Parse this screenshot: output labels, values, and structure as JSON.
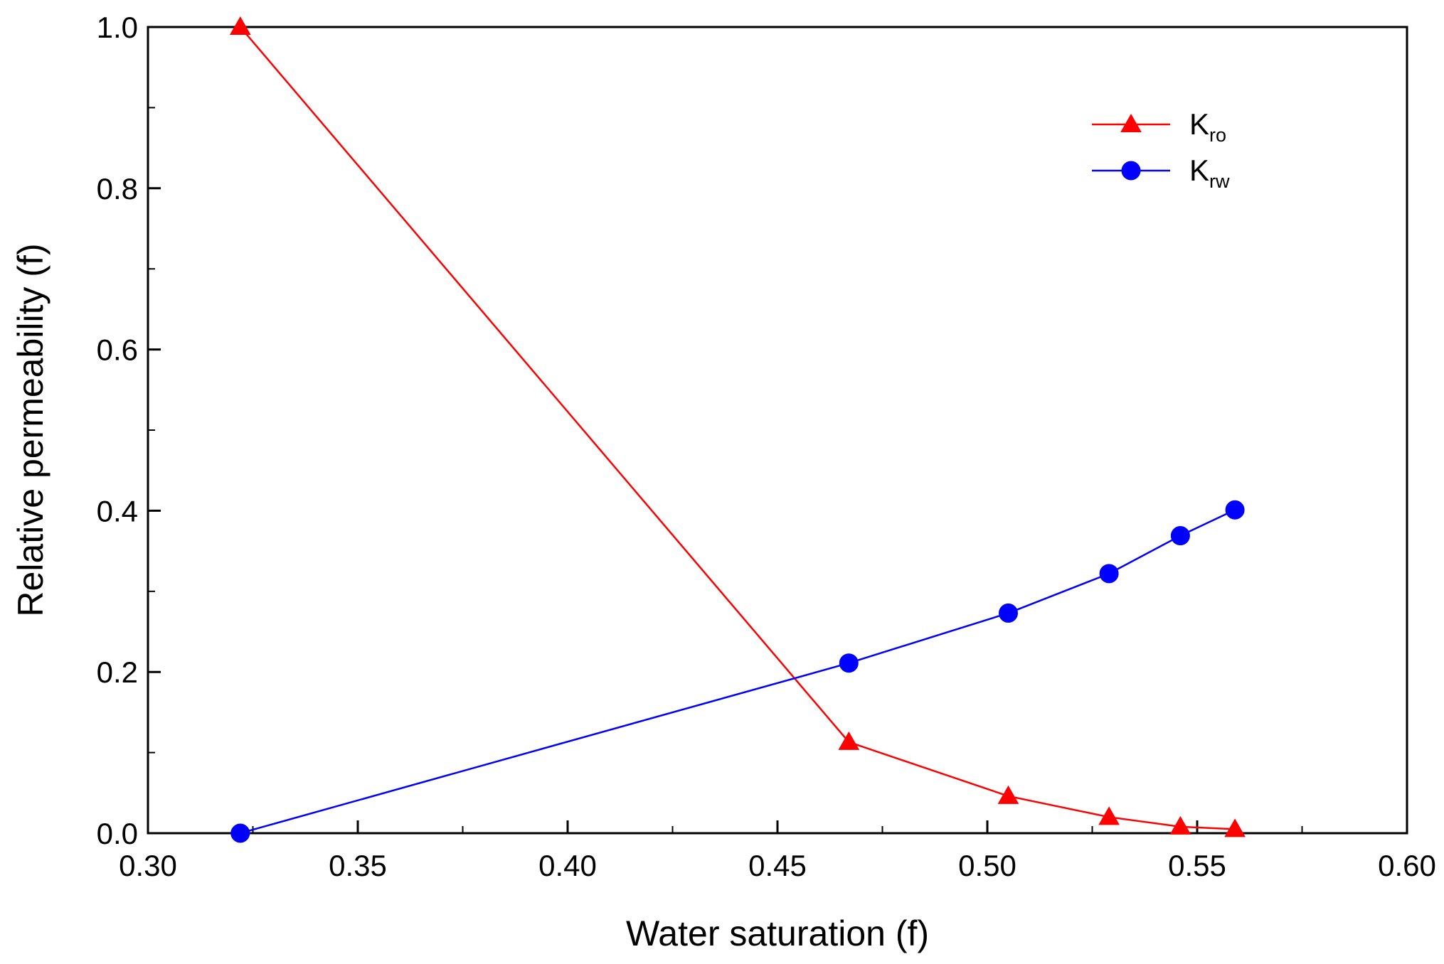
{
  "chart_data": {
    "type": "line",
    "title": "",
    "xlabel": "Water saturation (f)",
    "ylabel": "Relative permeability (f)",
    "xlim": [
      0.3,
      0.6
    ],
    "ylim": [
      0.0,
      1.0
    ],
    "x_ticks": [
      0.3,
      0.35,
      0.4,
      0.45,
      0.5,
      0.55,
      0.6
    ],
    "x_tick_labels": [
      "0.30",
      "0.35",
      "0.40",
      "0.45",
      "0.50",
      "0.55",
      "0.60"
    ],
    "y_ticks": [
      0.0,
      0.2,
      0.4,
      0.6,
      0.8,
      1.0
    ],
    "y_tick_labels": [
      "0.0",
      "0.2",
      "0.4",
      "0.6",
      "0.8",
      "1.0"
    ],
    "grid": false,
    "legend_position": "top-right",
    "series": [
      {
        "id": "kro",
        "name": "Kro",
        "label_main": "K",
        "label_sub": "ro",
        "color": "#ff0000",
        "marker": "triangle",
        "x": [
          0.322,
          0.467,
          0.505,
          0.529,
          0.546,
          0.559
        ],
        "y": [
          1.0,
          0.113,
          0.046,
          0.02,
          0.008,
          0.005
        ]
      },
      {
        "id": "krw",
        "name": "Krw",
        "label_main": "K",
        "label_sub": "rw",
        "color": "#0000ff",
        "marker": "circle",
        "x": [
          0.322,
          0.467,
          0.505,
          0.529,
          0.546,
          0.559
        ],
        "y": [
          0.0,
          0.211,
          0.273,
          0.322,
          0.369,
          0.401
        ]
      }
    ]
  }
}
